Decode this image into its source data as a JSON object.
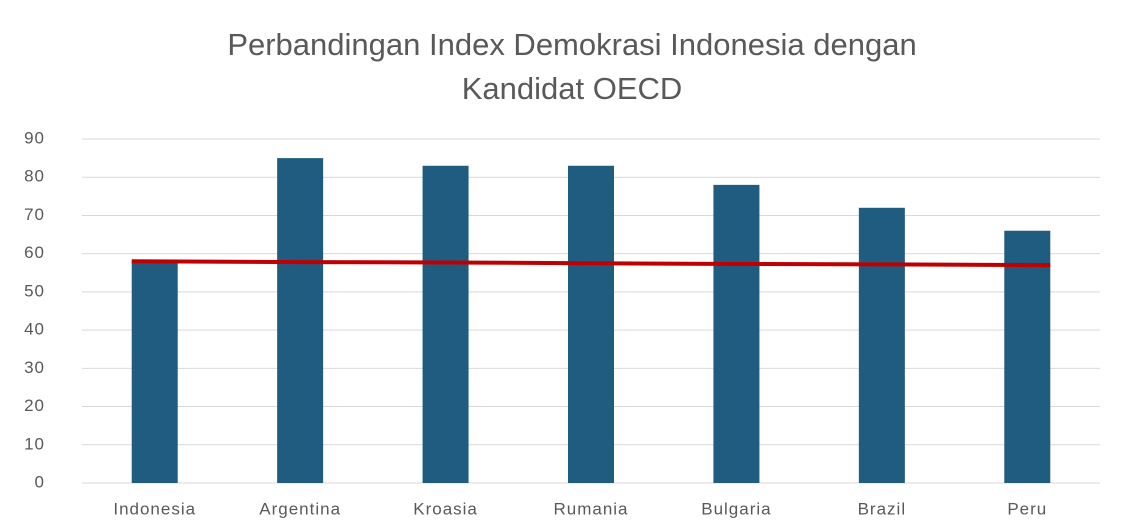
{
  "chart_data": {
    "type": "bar",
    "title_lines": [
      "Perbandingan Index Demokrasi Indonesia dengan",
      "Kandidat OECD"
    ],
    "categories": [
      "Indonesia",
      "Argentina",
      "Kroasia",
      "Rumania",
      "Bulgaria",
      "Brazil",
      "Peru"
    ],
    "series": [
      {
        "type": "bar",
        "color": "#1f5c80",
        "values": [
          58,
          85,
          83,
          83,
          78,
          72,
          66
        ]
      },
      {
        "type": "line",
        "color": "#c00000",
        "values": [
          58,
          57.8,
          57.7,
          57.5,
          57.3,
          57.2,
          57
        ]
      }
    ],
    "ylim": [
      0,
      90
    ],
    "yticks": [
      0,
      10,
      20,
      30,
      40,
      50,
      60,
      70,
      80,
      90
    ],
    "grid": true
  }
}
